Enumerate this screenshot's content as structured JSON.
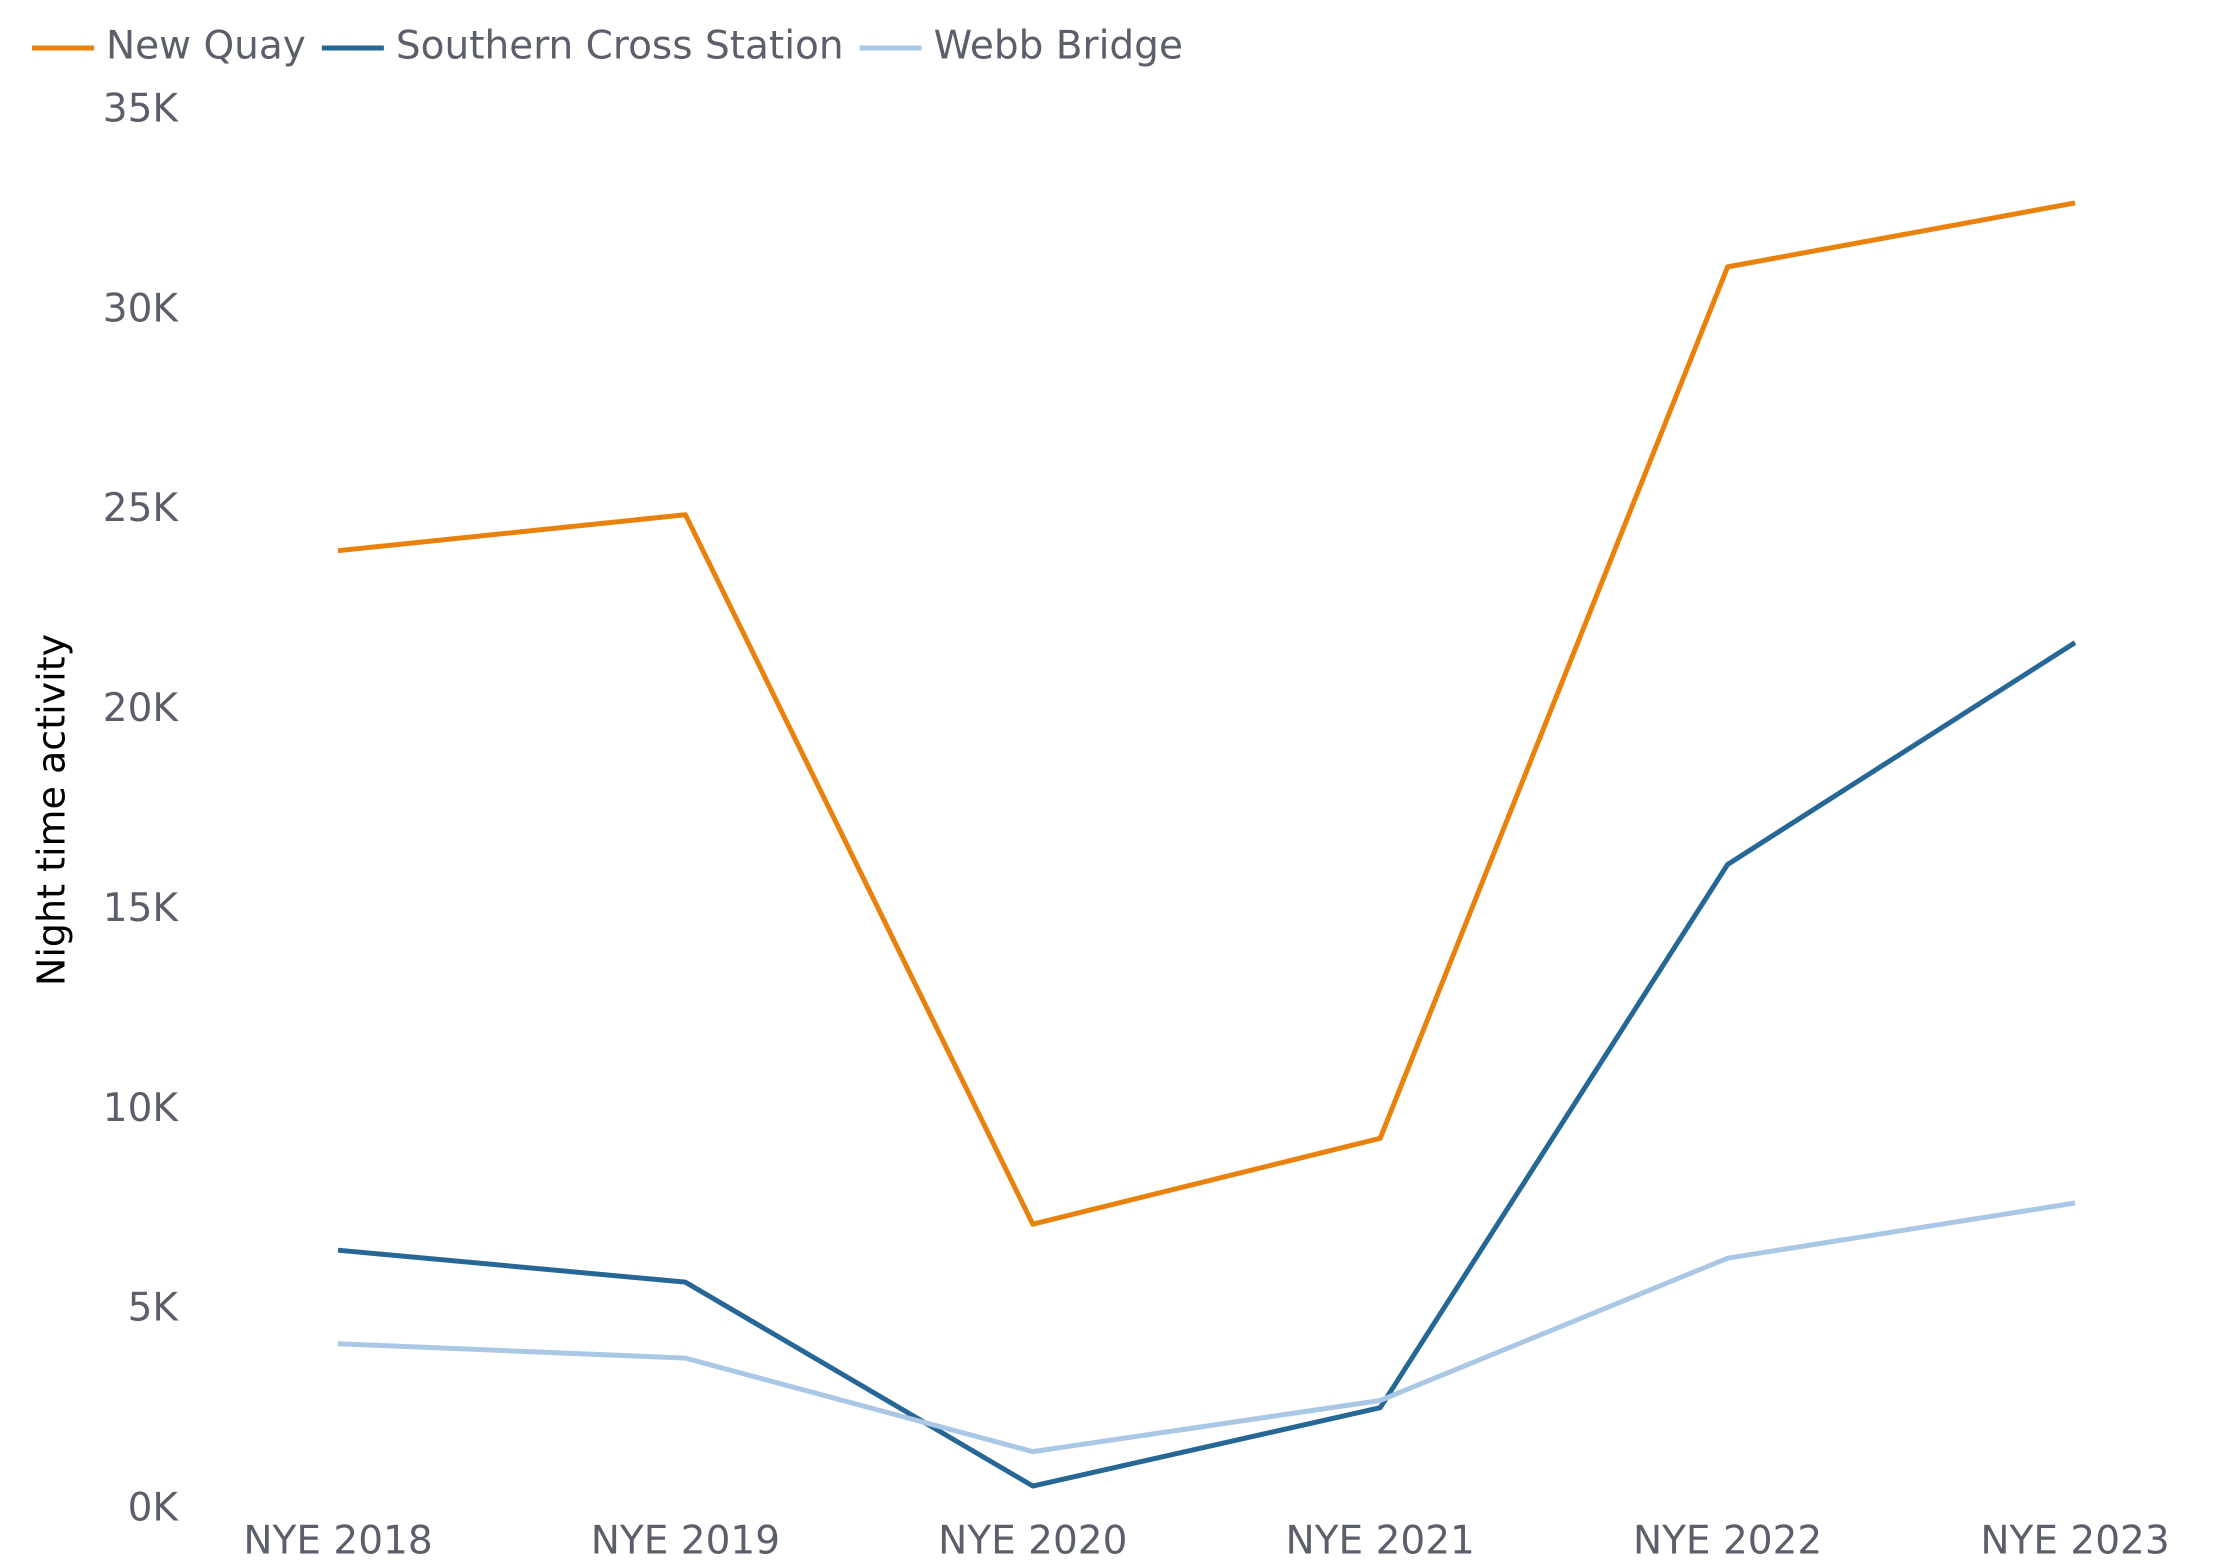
{
  "chart_data": {
    "type": "line",
    "y_label": "Night time activity",
    "categories": [
      "NYE 2018",
      "NYE 2019",
      "NYE 2020",
      "NYE 2021",
      "NYE 2022",
      "NYE 2023"
    ],
    "series": [
      {
        "name": "New Quay",
        "color": "#e8820c",
        "values": [
          24000,
          24900,
          7150,
          9300,
          31100,
          32700
        ]
      },
      {
        "name": "Southern Cross Station",
        "color": "#276796",
        "values": [
          6500,
          5700,
          600,
          2560,
          16150,
          21700
        ]
      },
      {
        "name": "Webb Bridge",
        "color": "#aac8e6",
        "values": [
          4160,
          3800,
          1460,
          2740,
          6300,
          7680
        ]
      }
    ],
    "ylim": [
      0,
      35000
    ],
    "yticks": [
      {
        "value": 0,
        "label": "0K"
      },
      {
        "value": 5000,
        "label": "5K"
      },
      {
        "value": 10000,
        "label": "10K"
      },
      {
        "value": 15000,
        "label": "15K"
      },
      {
        "value": 20000,
        "label": "20K"
      },
      {
        "value": 25000,
        "label": "25K"
      },
      {
        "value": 30000,
        "label": "30K"
      },
      {
        "value": 35000,
        "label": "35K"
      }
    ],
    "grid": false,
    "legend": "top-left"
  }
}
